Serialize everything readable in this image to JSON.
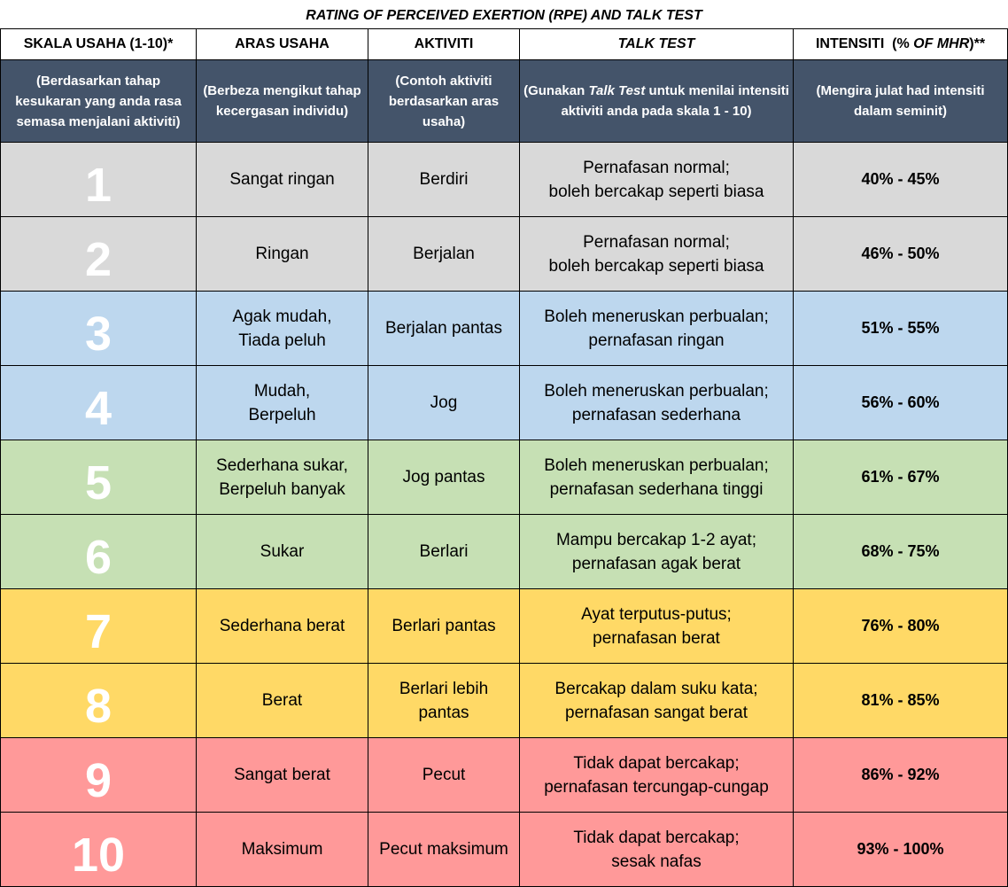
{
  "title": "RATING OF PERCEIVED EXERTION (RPE) AND TALK TEST",
  "headers": {
    "col1": "SKALA USAHA (1-10)*",
    "col2": "ARAS USAHA",
    "col3": "AKTIVITI",
    "col4": "TALK TEST",
    "col5_prefix": "INTENSITI  (% ",
    "col5_italic": "OF MHR",
    "col5_suffix": ")**"
  },
  "subheaders": {
    "col1": "(Berdasarkan tahap kesukaran yang anda rasa semasa menjalani aktiviti)",
    "col2": "(Berbeza mengikut tahap kecergasan individu)",
    "col3": "(Contoh aktiviti berdasarkan aras usaha)",
    "col4_prefix": "(Gunakan ",
    "col4_italic": "Talk Test",
    "col4_suffix": " untuk menilai intensiti aktiviti anda pada skala 1 - 10)",
    "col5": "(Mengira julat had intensiti dalam seminit)"
  },
  "rows": [
    {
      "scale": "1",
      "level": [
        "Sangat ringan"
      ],
      "activity": [
        "Berdiri"
      ],
      "talk": [
        "Pernafasan normal;",
        "boleh bercakap seperti biasa"
      ],
      "intensity": "40% - 45%",
      "band": "grey",
      "band_color": "#d9d9d9"
    },
    {
      "scale": "2",
      "level": [
        "Ringan"
      ],
      "activity": [
        "Berjalan"
      ],
      "talk": [
        "Pernafasan normal;",
        "boleh bercakap seperti biasa"
      ],
      "intensity": "46% - 50%",
      "band": "grey",
      "band_color": "#d9d9d9"
    },
    {
      "scale": "3",
      "level": [
        "Agak mudah,",
        "Tiada peluh"
      ],
      "activity": [
        "Berjalan pantas"
      ],
      "talk": [
        "Boleh meneruskan perbualan;",
        "pernafasan ringan"
      ],
      "intensity": "51% - 55%",
      "band": "blue",
      "band_color": "#bdd7ee"
    },
    {
      "scale": "4",
      "level": [
        "Mudah,",
        "Berpeluh"
      ],
      "activity": [
        "Jog"
      ],
      "talk": [
        "Boleh meneruskan perbualan;",
        "pernafasan sederhana"
      ],
      "intensity": "56% - 60%",
      "band": "blue",
      "band_color": "#bdd7ee"
    },
    {
      "scale": "5",
      "level": [
        "Sederhana sukar,",
        "Berpeluh banyak"
      ],
      "activity": [
        "Jog pantas"
      ],
      "talk": [
        "Boleh meneruskan perbualan;",
        "pernafasan sederhana tinggi"
      ],
      "intensity": "61% - 67%",
      "band": "green",
      "band_color": "#c6e0b4"
    },
    {
      "scale": "6",
      "level": [
        "Sukar"
      ],
      "activity": [
        "Berlari"
      ],
      "talk": [
        "Mampu bercakap 1-2 ayat;",
        "pernafasan agak berat"
      ],
      "intensity": "68% - 75%",
      "band": "green",
      "band_color": "#c6e0b4"
    },
    {
      "scale": "7",
      "level": [
        "Sederhana berat"
      ],
      "activity": [
        "Berlari pantas"
      ],
      "talk": [
        "Ayat terputus-putus;",
        "pernafasan berat"
      ],
      "intensity": "76% - 80%",
      "band": "yellow",
      "band_color": "#ffd966"
    },
    {
      "scale": "8",
      "level": [
        "Berat"
      ],
      "activity": [
        "Berlari lebih",
        "pantas"
      ],
      "talk": [
        "Bercakap dalam suku kata;",
        "pernafasan sangat berat"
      ],
      "intensity": "81% - 85%",
      "band": "yellow",
      "band_color": "#ffd966"
    },
    {
      "scale": "9",
      "level": [
        "Sangat berat"
      ],
      "activity": [
        "Pecut"
      ],
      "talk": [
        "Tidak dapat bercakap;",
        "pernafasan tercungap-cungap"
      ],
      "intensity": "86% - 92%",
      "band": "red",
      "band_color": "#ff9999"
    },
    {
      "scale": "10",
      "level": [
        "Maksimum"
      ],
      "activity": [
        "Pecut maksimum"
      ],
      "talk": [
        "Tidak dapat bercakap;",
        "sesak nafas"
      ],
      "intensity": "93% - 100%",
      "band": "red",
      "band_color": "#ff9999"
    }
  ]
}
